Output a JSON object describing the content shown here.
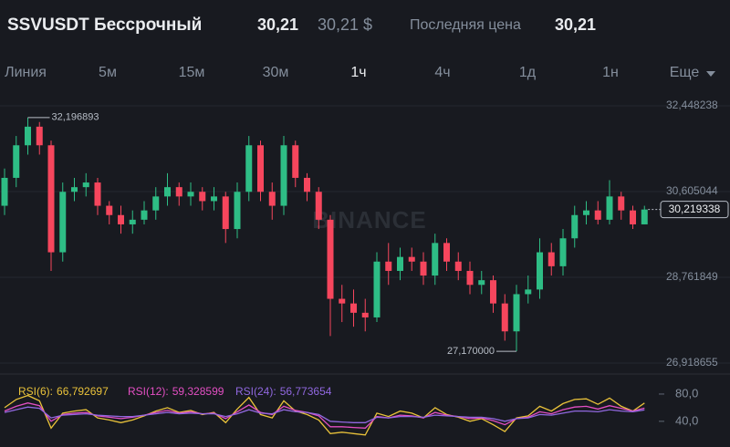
{
  "header": {
    "title": "SSVUSDT Бессрочный",
    "price": "30,21",
    "price_usd": "30,21 $",
    "last_price_label": "Последняя цена",
    "last_price": "30,21"
  },
  "tabs": [
    "Линия",
    "5м",
    "15м",
    "30м",
    "1ч",
    "4ч",
    "1д",
    "1н",
    "Еще"
  ],
  "watermark": "BINANCE",
  "chart_data": {
    "type": "candlestick",
    "up_color": "#2ebd85",
    "down_color": "#f6465d",
    "open": [
      30.3,
      30.9,
      31.6,
      32.0,
      31.6,
      29.3,
      30.6,
      30.7,
      30.8,
      30.3,
      30.1,
      29.9,
      30.0,
      30.2,
      30.5,
      30.7,
      30.5,
      30.6,
      30.4,
      30.5,
      29.8,
      30.6,
      31.6,
      30.6,
      30.3,
      31.6,
      30.9,
      30.6,
      30.0,
      28.3,
      28.2,
      28.0,
      27.9,
      29.1,
      28.9,
      29.2,
      29.1,
      28.8,
      29.5,
      29.1,
      28.9,
      28.6,
      28.7,
      28.2,
      27.6,
      28.4,
      28.5,
      29.3,
      29.0,
      29.6,
      30.1,
      30.2,
      30.0,
      30.5,
      30.2,
      29.9
    ],
    "high": [
      31.1,
      31.8,
      32.196893,
      32.1,
      31.7,
      30.8,
      30.9,
      31.0,
      30.9,
      30.4,
      30.3,
      30.2,
      30.4,
      30.7,
      31.0,
      30.8,
      30.8,
      30.7,
      30.7,
      30.6,
      30.8,
      31.8,
      31.7,
      30.8,
      31.8,
      31.7,
      31.0,
      30.7,
      30.1,
      28.6,
      28.5,
      28.3,
      29.3,
      29.5,
      29.4,
      29.4,
      29.3,
      29.7,
      29.6,
      29.3,
      29.1,
      28.9,
      28.8,
      28.4,
      28.6,
      28.8,
      29.6,
      29.5,
      29.8,
      30.3,
      30.4,
      30.4,
      30.85,
      30.6,
      30.3,
      30.3
    ],
    "low": [
      30.1,
      30.7,
      31.4,
      31.4,
      28.9,
      29.1,
      30.4,
      30.5,
      30.1,
      29.9,
      29.7,
      29.7,
      29.9,
      30.0,
      30.3,
      30.3,
      30.3,
      30.2,
      30.2,
      29.5,
      29.6,
      30.4,
      30.4,
      30.0,
      30.1,
      30.7,
      30.4,
      29.8,
      27.5,
      27.8,
      27.7,
      27.6,
      27.8,
      28.6,
      28.7,
      28.9,
      28.6,
      28.6,
      28.9,
      28.7,
      28.4,
      28.4,
      28.0,
      27.4,
      27.17,
      28.2,
      28.3,
      28.8,
      28.8,
      29.4,
      29.9,
      29.9,
      29.9,
      30.0,
      29.8,
      29.9
    ],
    "close": [
      30.9,
      31.6,
      32.0,
      31.6,
      29.3,
      30.6,
      30.7,
      30.8,
      30.3,
      30.1,
      29.9,
      30.0,
      30.2,
      30.5,
      30.7,
      30.5,
      30.6,
      30.4,
      30.5,
      29.8,
      30.6,
      31.6,
      30.6,
      30.3,
      31.6,
      30.9,
      30.6,
      30.0,
      28.3,
      28.2,
      28.0,
      27.9,
      29.1,
      28.9,
      29.2,
      29.1,
      28.8,
      29.5,
      29.1,
      28.9,
      28.6,
      28.7,
      28.2,
      27.6,
      28.4,
      28.5,
      29.3,
      29.0,
      29.6,
      30.1,
      30.2,
      30.0,
      30.5,
      30.2,
      29.9,
      30.219338
    ],
    "ylim": [
      26.918655,
      32.448238
    ],
    "yticks": [
      {
        "value": 26.918655,
        "label": "26,918655"
      },
      {
        "value": 28.761849,
        "label": "28,761849"
      },
      {
        "value": 30.605044,
        "label": "30,605044"
      },
      {
        "value": 32.448238,
        "label": "32,448238"
      }
    ],
    "grid": true,
    "max_label": "32,196893",
    "min_label": "27,170000",
    "last_label": "30,219338",
    "rsi": {
      "type": "line",
      "ylim": [
        5,
        96
      ],
      "yticks": [
        {
          "value": 40,
          "label": "40,0"
        },
        {
          "value": 80,
          "label": "80,0"
        }
      ],
      "series": [
        {
          "name": "RSI(6):",
          "color": "#e9c23a",
          "last_label": "66,792697",
          "values": [
            60,
            72,
            78,
            70,
            30,
            52,
            55,
            57,
            45,
            42,
            38,
            42,
            48,
            55,
            60,
            53,
            56,
            50,
            53,
            38,
            58,
            75,
            50,
            45,
            70,
            55,
            50,
            42,
            22,
            24,
            22,
            20,
            52,
            47,
            55,
            52,
            45,
            60,
            50,
            46,
            40,
            44,
            35,
            25,
            45,
            48,
            62,
            55,
            66,
            72,
            73,
            65,
            74,
            62,
            55,
            66.792697
          ]
        },
        {
          "name": "RSI(12):",
          "color": "#e34fc3",
          "last_label": "59,328599",
          "values": [
            55,
            62,
            67,
            63,
            40,
            50,
            52,
            53,
            48,
            46,
            44,
            46,
            49,
            53,
            56,
            52,
            54,
            51,
            52,
            44,
            54,
            64,
            53,
            50,
            62,
            56,
            53,
            48,
            32,
            32,
            31,
            30,
            47,
            45,
            49,
            48,
            45,
            53,
            49,
            47,
            44,
            45,
            41,
            35,
            44,
            46,
            54,
            51,
            57,
            61,
            62,
            58,
            63,
            59,
            55,
            59.328599
          ]
        },
        {
          "name": "RSI(24):",
          "color": "#9168e0",
          "last_label": "56,773654",
          "values": [
            53,
            57,
            61,
            59,
            45,
            49,
            50,
            51,
            49,
            48,
            47,
            47,
            49,
            51,
            53,
            51,
            52,
            51,
            51,
            47,
            51,
            57,
            52,
            51,
            57,
            54,
            53,
            50,
            40,
            39,
            38,
            38,
            46,
            45,
            47,
            47,
            46,
            49,
            48,
            47,
            46,
            46,
            44,
            40,
            44,
            45,
            50,
            49,
            52,
            55,
            55,
            54,
            57,
            55,
            54,
            56.773654
          ]
        }
      ]
    }
  }
}
